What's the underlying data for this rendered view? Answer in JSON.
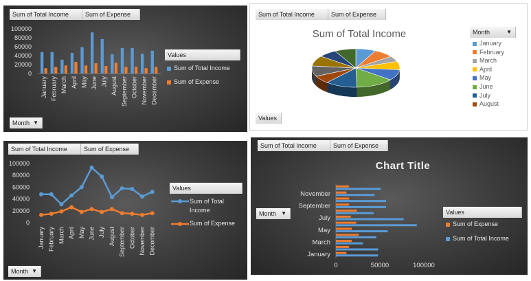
{
  "labels": {
    "income": "Sum of Total Income",
    "expense": "Sum of Expense",
    "values": "Values",
    "month": "Month"
  },
  "colors": {
    "income": "#5B9BD5",
    "expense": "#ED7D31"
  },
  "chart_data": [
    {
      "type": "bar",
      "categories": [
        "January",
        "February",
        "March",
        "April",
        "May",
        "June",
        "July",
        "August",
        "September",
        "October",
        "November",
        "December"
      ],
      "series": [
        {
          "name": "Sum of Total Income",
          "values": [
            48000,
            48000,
            31000,
            46000,
            59000,
            92000,
            77000,
            43000,
            57000,
            57000,
            44000,
            51000
          ]
        },
        {
          "name": "Sum of Expense",
          "values": [
            12000,
            15000,
            18000,
            26000,
            18000,
            23000,
            17000,
            24000,
            15000,
            15000,
            12000,
            15000
          ]
        }
      ],
      "ylim": [
        0,
        100000
      ],
      "yticks": [
        "0",
        "20000",
        "40000",
        "60000",
        "80000",
        "100000"
      ],
      "legend": "right"
    },
    {
      "type": "pie",
      "title": "Sum of Total Income",
      "categories": [
        "January",
        "February",
        "March",
        "April",
        "May",
        "June",
        "July",
        "August",
        "September",
        "October",
        "November",
        "December"
      ],
      "values": [
        48000,
        48000,
        31000,
        46000,
        59000,
        92000,
        77000,
        43000,
        57000,
        57000,
        44000,
        51000
      ],
      "slice_colors": [
        "#5B9BD5",
        "#ED7D31",
        "#A5A5A5",
        "#FFC000",
        "#4472C4",
        "#70AD47",
        "#255E91",
        "#9E480E",
        "#636363",
        "#997300",
        "#264478",
        "#43682B"
      ],
      "legend_visible": [
        "January",
        "February",
        "March",
        "April",
        "May",
        "June",
        "July",
        "August"
      ],
      "legend": "right"
    },
    {
      "type": "line",
      "categories": [
        "January",
        "February",
        "March",
        "April",
        "May",
        "June",
        "July",
        "August",
        "September",
        "October",
        "November",
        "December"
      ],
      "series": [
        {
          "name": "Sum of Total Income",
          "values": [
            48000,
            48000,
            31000,
            46000,
            60000,
            93000,
            78000,
            43000,
            58000,
            57000,
            44000,
            52000
          ]
        },
        {
          "name": "Sum of Expense",
          "values": [
            13000,
            15000,
            19000,
            26000,
            18000,
            23000,
            18000,
            23000,
            16000,
            15000,
            13000,
            16000
          ]
        }
      ],
      "ylim": [
        0,
        100000
      ],
      "yticks": [
        "0",
        "20000",
        "40000",
        "60000",
        "80000",
        "100000"
      ],
      "legend": "right"
    },
    {
      "type": "bar",
      "orientation": "horizontal",
      "title": "Chart Title",
      "categories": [
        "January",
        "February",
        "March",
        "April",
        "May",
        "June",
        "July",
        "August",
        "September",
        "October",
        "November",
        "December"
      ],
      "category_labels_shown": [
        "January",
        "March",
        "May",
        "July",
        "September",
        "November"
      ],
      "series": [
        {
          "name": "Sum of Expense",
          "values": [
            12000,
            15000,
            18000,
            26000,
            18000,
            23000,
            17000,
            24000,
            15000,
            15000,
            12000,
            15000
          ]
        },
        {
          "name": "Sum of Total Income",
          "values": [
            48000,
            48000,
            31000,
            46000,
            59000,
            92000,
            77000,
            43000,
            57000,
            57000,
            44000,
            51000
          ]
        }
      ],
      "xlim": [
        0,
        100000
      ],
      "xticks": [
        "0",
        "50000",
        "100000"
      ],
      "legend": "right"
    }
  ]
}
